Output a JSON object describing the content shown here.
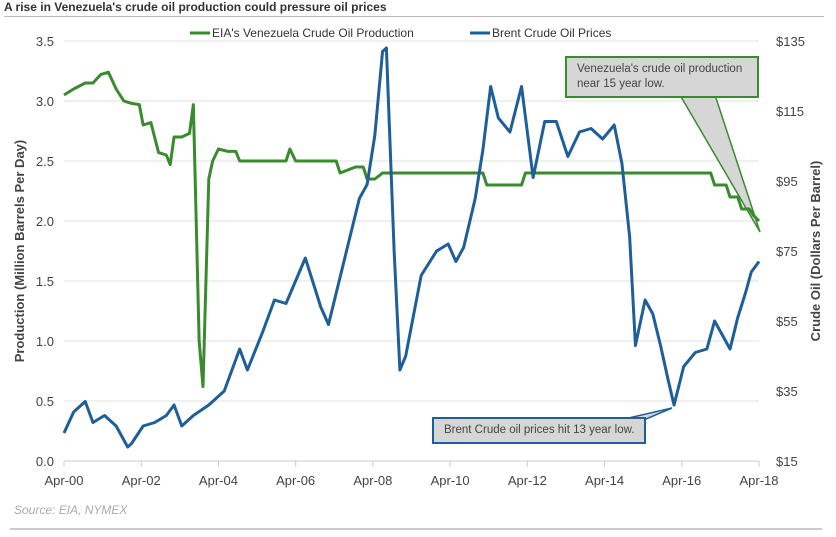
{
  "title": "A rise in Venezuela's crude oil production could pressure oil prices",
  "source": "Source: EIA, NYMEX",
  "annotations": {
    "production": "Venezuela's crude oil production near 15 year low.",
    "brent": "Brent Crude oil prices hit  13 year low."
  },
  "chart_data": {
    "type": "line",
    "xlabel": "",
    "ylabel": "Production (Million Barrels Per Day)",
    "y2label": "Crude Oil (Dollars Per Barrel)",
    "xlim": [
      2000.25,
      2018.25
    ],
    "ylim": [
      0,
      3.5
    ],
    "y2lim": [
      15,
      135
    ],
    "xticks": [
      {
        "v": 2000.25,
        "label": "Apr-00"
      },
      {
        "v": 2002.25,
        "label": "Apr-02"
      },
      {
        "v": 2004.25,
        "label": "Apr-04"
      },
      {
        "v": 2006.25,
        "label": "Apr-06"
      },
      {
        "v": 2008.25,
        "label": "Apr-08"
      },
      {
        "v": 2010.25,
        "label": "Apr-10"
      },
      {
        "v": 2012.25,
        "label": "Apr-12"
      },
      {
        "v": 2014.25,
        "label": "Apr-14"
      },
      {
        "v": 2016.25,
        "label": "Apr-16"
      },
      {
        "v": 2018.25,
        "label": "Apr-18"
      }
    ],
    "yticks": [
      "0.0",
      "0.5",
      "1.0",
      "1.5",
      "2.0",
      "2.5",
      "3.0",
      "3.5"
    ],
    "y2ticks": [
      "$15",
      "$35",
      "$55",
      "$75",
      "$95",
      "$115",
      "$135"
    ],
    "grid": true,
    "legend": "top",
    "series": [
      {
        "name": "EIA's Venezuela Crude Oil Production",
        "axis": "left",
        "color": "#3a8a2e",
        "points": [
          [
            2000.25,
            3.05
          ],
          [
            2000.5,
            3.1
          ],
          [
            2000.8,
            3.15
          ],
          [
            2001.0,
            3.15
          ],
          [
            2001.2,
            3.22
          ],
          [
            2001.4,
            3.24
          ],
          [
            2001.6,
            3.1
          ],
          [
            2001.8,
            3.0
          ],
          [
            2002.0,
            2.98
          ],
          [
            2002.2,
            2.97
          ],
          [
            2002.3,
            2.8
          ],
          [
            2002.5,
            2.82
          ],
          [
            2002.7,
            2.57
          ],
          [
            2002.9,
            2.55
          ],
          [
            2003.0,
            2.47
          ],
          [
            2003.1,
            2.7
          ],
          [
            2003.3,
            2.7
          ],
          [
            2003.5,
            2.73
          ],
          [
            2003.6,
            2.97
          ],
          [
            2003.75,
            1.0
          ],
          [
            2003.85,
            0.62
          ],
          [
            2004.0,
            2.35
          ],
          [
            2004.1,
            2.5
          ],
          [
            2004.25,
            2.6
          ],
          [
            2004.5,
            2.58
          ],
          [
            2004.7,
            2.58
          ],
          [
            2004.8,
            2.5
          ],
          [
            2006.0,
            2.5
          ],
          [
            2006.1,
            2.6
          ],
          [
            2006.25,
            2.5
          ],
          [
            2007.3,
            2.5
          ],
          [
            2007.4,
            2.4
          ],
          [
            2007.8,
            2.45
          ],
          [
            2008.0,
            2.45
          ],
          [
            2008.1,
            2.35
          ],
          [
            2008.3,
            2.35
          ],
          [
            2008.5,
            2.4
          ],
          [
            2011.1,
            2.4
          ],
          [
            2011.2,
            2.3
          ],
          [
            2012.1,
            2.3
          ],
          [
            2012.2,
            2.4
          ],
          [
            2017.0,
            2.4
          ],
          [
            2017.1,
            2.3
          ],
          [
            2017.4,
            2.3
          ],
          [
            2017.5,
            2.2
          ],
          [
            2017.7,
            2.2
          ],
          [
            2017.8,
            2.1
          ],
          [
            2018.0,
            2.1
          ],
          [
            2018.1,
            2.05
          ],
          [
            2018.25,
            2.0
          ]
        ]
      },
      {
        "name": "Brent Crude Oil Prices",
        "axis": "right",
        "color": "#1f5f99",
        "points": [
          [
            2000.25,
            23
          ],
          [
            2000.5,
            29
          ],
          [
            2000.8,
            32
          ],
          [
            2001.0,
            26
          ],
          [
            2001.3,
            28
          ],
          [
            2001.6,
            25
          ],
          [
            2001.9,
            19
          ],
          [
            2002.0,
            20
          ],
          [
            2002.3,
            25
          ],
          [
            2002.6,
            26
          ],
          [
            2002.9,
            28
          ],
          [
            2003.1,
            31
          ],
          [
            2003.3,
            25
          ],
          [
            2003.6,
            28
          ],
          [
            2004.0,
            31
          ],
          [
            2004.4,
            35
          ],
          [
            2004.8,
            47
          ],
          [
            2005.0,
            41
          ],
          [
            2005.4,
            52
          ],
          [
            2005.7,
            61
          ],
          [
            2006.0,
            60
          ],
          [
            2006.5,
            73
          ],
          [
            2006.9,
            59
          ],
          [
            2007.1,
            54
          ],
          [
            2007.5,
            72
          ],
          [
            2007.9,
            90
          ],
          [
            2008.1,
            94
          ],
          [
            2008.3,
            108
          ],
          [
            2008.5,
            132
          ],
          [
            2008.6,
            133
          ],
          [
            2008.8,
            75
          ],
          [
            2008.95,
            41
          ],
          [
            2009.1,
            45
          ],
          [
            2009.5,
            68
          ],
          [
            2009.9,
            75
          ],
          [
            2010.2,
            77
          ],
          [
            2010.4,
            72
          ],
          [
            2010.6,
            76
          ],
          [
            2010.9,
            90
          ],
          [
            2011.1,
            104
          ],
          [
            2011.3,
            122
          ],
          [
            2011.5,
            113
          ],
          [
            2011.8,
            109
          ],
          [
            2012.1,
            122
          ],
          [
            2012.4,
            96
          ],
          [
            2012.7,
            112
          ],
          [
            2013.0,
            112
          ],
          [
            2013.3,
            102
          ],
          [
            2013.6,
            109
          ],
          [
            2013.9,
            110
          ],
          [
            2014.2,
            107
          ],
          [
            2014.5,
            111
          ],
          [
            2014.7,
            100
          ],
          [
            2014.9,
            79
          ],
          [
            2015.05,
            48
          ],
          [
            2015.3,
            61
          ],
          [
            2015.5,
            57
          ],
          [
            2015.7,
            48
          ],
          [
            2015.9,
            38
          ],
          [
            2016.05,
            31
          ],
          [
            2016.3,
            42
          ],
          [
            2016.6,
            46
          ],
          [
            2016.9,
            47
          ],
          [
            2017.1,
            55
          ],
          [
            2017.3,
            51
          ],
          [
            2017.5,
            47
          ],
          [
            2017.7,
            56
          ],
          [
            2017.9,
            63
          ],
          [
            2018.05,
            69
          ],
          [
            2018.25,
            72
          ]
        ]
      }
    ]
  }
}
